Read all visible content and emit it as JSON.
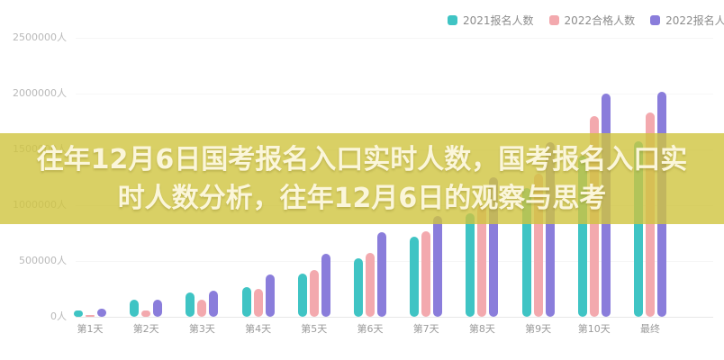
{
  "overlay": {
    "line1": "往年12月6日国考报名入口实时人数，国考报名入口实",
    "line2": "时人数分析，往年12月6日的观察与思考",
    "band_color": "rgba(208,196,62,0.80)",
    "text_color": "#fbf6da"
  },
  "chart_data": {
    "type": "bar",
    "title": "",
    "xlabel": "",
    "ylabel": "",
    "ylabel_suffix": "人",
    "ylim": [
      0,
      2500000
    ],
    "yticks": [
      0,
      500000,
      1000000,
      1500000,
      2000000,
      2500000
    ],
    "ytick_labels": [
      "0人",
      "500000人",
      "1000000人",
      "1500000人",
      "2000000人",
      "2500000人"
    ],
    "grid": "faint-horizontal",
    "legend_position": "top-right",
    "categories": [
      "第1天",
      "第2天",
      "第3天",
      "第4天",
      "第5天",
      "第6天",
      "第7天",
      "第8天",
      "第9天",
      "第10天",
      "最终"
    ],
    "series": [
      {
        "name": "2021报名人数",
        "color": "#3fc4c4",
        "values": [
          55000,
          150000,
          215000,
          265000,
          385000,
          525000,
          715000,
          930000,
          1150000,
          1440000,
          1570000
        ]
      },
      {
        "name": "2022合格人数",
        "color": "#f3a9ae",
        "values": [
          8000,
          60000,
          150000,
          250000,
          420000,
          575000,
          770000,
          1000000,
          1280000,
          1800000,
          1830000
        ]
      },
      {
        "name": "2022报名人数",
        "color": "#8a7ddb",
        "values": [
          75000,
          155000,
          230000,
          380000,
          565000,
          760000,
          900000,
          1250000,
          1565000,
          2000000,
          2020000
        ]
      }
    ]
  }
}
